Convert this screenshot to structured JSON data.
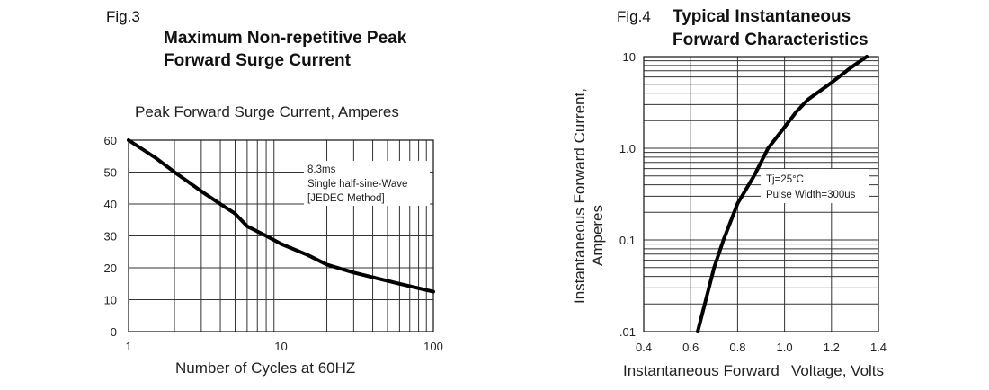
{
  "chart_data": [
    {
      "type": "line",
      "fig_label": "Fig.3",
      "title": [
        "Maximum Non-repetitive Peak",
        "Forward Surge Current"
      ],
      "ylabel": "Peak Forward Surge Current,   Amperes",
      "xlabel": "Number of Cycles at 60HZ",
      "xscale": "log",
      "xlim": [
        1,
        100
      ],
      "ylim": [
        0,
        60
      ],
      "xticks": [
        1,
        10,
        100
      ],
      "xtick_labels": [
        "1",
        "10",
        "100"
      ],
      "yticks": [
        0,
        10,
        20,
        30,
        40,
        50,
        60
      ],
      "ytick_labels": [
        "0",
        "10",
        "20",
        "30",
        "40",
        "50",
        "60"
      ],
      "grid": true,
      "annotations": [
        "8.3ms",
        "Single half-sine-Wave",
        "[JEDEC Method]"
      ],
      "series": [
        {
          "x": [
            1,
            1.5,
            2,
            3,
            4,
            5,
            6,
            8,
            10,
            15,
            20,
            30,
            40,
            60,
            100
          ],
          "values": [
            60,
            54.5,
            50,
            44,
            40,
            37,
            33,
            30,
            27.5,
            24,
            21,
            18.5,
            17,
            15,
            12.5
          ]
        }
      ]
    },
    {
      "type": "line",
      "fig_label": "Fig.4",
      "title": [
        "Typical Instantaneous",
        "Forward Characteristics"
      ],
      "ylabel": [
        "Instantaneous Forward Current,",
        "Amperes"
      ],
      "xlabel": [
        "Instantaneous Forward",
        "Voltage, Volts"
      ],
      "yscale": "log",
      "xlim": [
        0.4,
        1.4
      ],
      "ylim": [
        0.01,
        10
      ],
      "xticks": [
        0.4,
        0.6,
        0.8,
        1.0,
        1.2,
        1.4
      ],
      "xtick_labels": [
        "0.4",
        "0.6",
        "0.8",
        "1.0",
        "1.2",
        "1.4"
      ],
      "yticks": [
        0.01,
        0.1,
        1.0,
        10
      ],
      "ytick_labels": [
        ".01",
        "0.1",
        "1.0",
        "10"
      ],
      "grid": true,
      "annotations": [
        "Tj=25°C",
        "Pulse Width=300us"
      ],
      "series": [
        {
          "x": [
            0.63,
            0.66,
            0.7,
            0.74,
            0.8,
            0.87,
            0.93,
            1.0,
            1.05,
            1.1,
            1.2,
            1.28,
            1.35
          ],
          "values": [
            0.01,
            0.02,
            0.05,
            0.1,
            0.25,
            0.5,
            1.0,
            1.7,
            2.5,
            3.4,
            5.2,
            7.5,
            10
          ]
        }
      ]
    }
  ]
}
